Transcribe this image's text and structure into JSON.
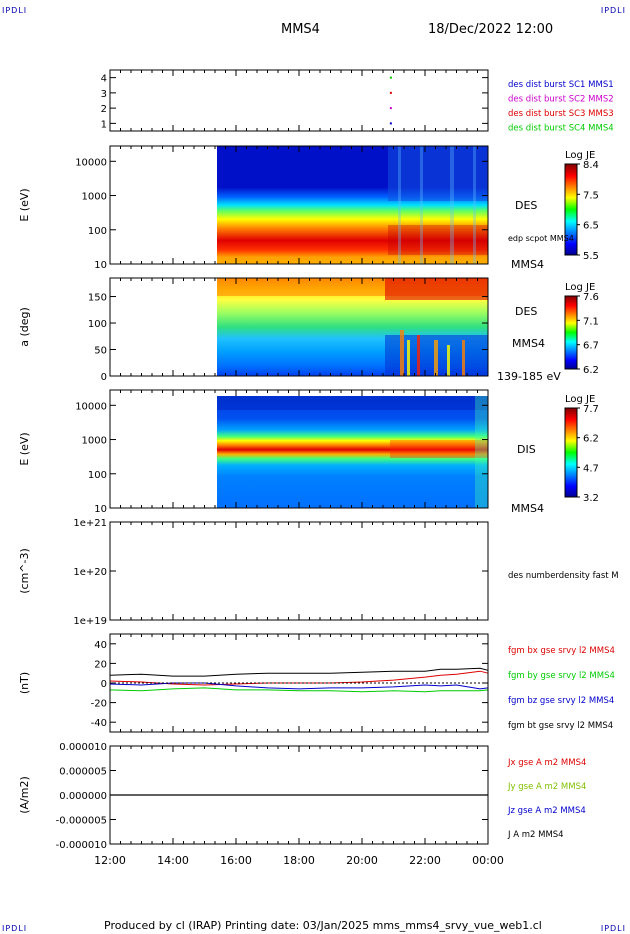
{
  "corners": {
    "tl": "IPDLI",
    "tr": "IPDLI",
    "bl": "IPDLI",
    "br": "IPDLI"
  },
  "header": {
    "spacecraft": "MMS4",
    "datetime": "18/Dec/2022 12:00"
  },
  "footer": {
    "text": "Produced by cl (IRAP)   Printing date: 03/Jan/2025   mms_mms4_srvy_vue_web1.cl"
  },
  "time_axis": {
    "ticks": [
      "12:00",
      "14:00",
      "16:00",
      "18:00",
      "20:00",
      "22:00",
      "00:00"
    ]
  },
  "colors": {
    "des": "#0000cc",
    "mms2": "#cc00cc",
    "mms3": "#dd0000",
    "mms4": "#00cc00",
    "black": "#000000"
  },
  "chart_data": [
    {
      "type": "scatter",
      "title": "",
      "ylabel": "",
      "ylim": [
        0.5,
        4.5
      ],
      "yticks": [
        "4",
        "3",
        "2",
        "1"
      ],
      "legend": [
        "des dist burst SC1 MMS1",
        "des dist burst SC2 MMS2",
        "des dist burst SC3 MMS3",
        "des dist burst SC4 MMS4"
      ],
      "points": [
        {
          "x": "20:55",
          "y": 4,
          "series": "des dist burst SC4 MMS4"
        },
        {
          "x": "20:55",
          "y": 3,
          "series": "des dist burst SC3 MMS3"
        },
        {
          "x": "20:55",
          "y": 2,
          "series": "des dist burst SC2 MMS2"
        },
        {
          "x": "20:55",
          "y": 1,
          "series": "des dist burst SC1 MMS1"
        }
      ]
    },
    {
      "type": "heatmap",
      "ylabel": "E (eV)",
      "yscale": "log",
      "yticks": [
        "10000",
        "1000",
        "100",
        "10"
      ],
      "right_labels": [
        "DES",
        "edp scpot MMS4",
        "MMS4"
      ],
      "colorbar": {
        "title": "Log JE",
        "ticks": [
          "8.4",
          "7.5",
          "6.5",
          "5.5"
        ],
        "range": [
          5.5,
          8.4
        ]
      },
      "data_start": "15:25"
    },
    {
      "type": "heatmap",
      "ylabel": "a (deg)",
      "yticks": [
        "150",
        "100",
        "50",
        "0"
      ],
      "right_labels": [
        "DES",
        "MMS4",
        "139-185 eV"
      ],
      "colorbar": {
        "title": "Log JE",
        "ticks": [
          "7.6",
          "7.1",
          "6.7",
          "6.2"
        ],
        "range": [
          6.2,
          7.6
        ]
      },
      "data_start": "15:25"
    },
    {
      "type": "heatmap",
      "ylabel": "E (eV)",
      "yscale": "log",
      "yticks": [
        "10000",
        "1000",
        "100",
        "10"
      ],
      "right_labels": [
        "DIS",
        "MMS4"
      ],
      "colorbar": {
        "title": "Log JE",
        "ticks": [
          "7.7",
          "6.2",
          "4.7",
          "3.2"
        ],
        "range": [
          3.2,
          7.7
        ]
      },
      "data_start": "15:25"
    },
    {
      "type": "line",
      "ylabel": "(cm^-3)",
      "yscale": "log",
      "yticks": [
        "1e+21",
        "1e+20",
        "1e+19"
      ],
      "legend": [
        "des numberdensity fast M"
      ],
      "series": []
    },
    {
      "type": "line",
      "ylabel": "(nT)",
      "ylim": [
        -50,
        50
      ],
      "yticks": [
        "40",
        "20",
        "0",
        "-20",
        "-40"
      ],
      "legend": [
        "fgm bx gse srvy l2 MMS4",
        "fgm by gse srvy l2 MMS4",
        "fgm bz gse srvy l2 MMS4",
        "fgm bt gse srvy l2 MMS4"
      ],
      "x": [
        "12:00",
        "13:00",
        "14:00",
        "15:00",
        "16:00",
        "17:00",
        "18:00",
        "19:00",
        "20:00",
        "21:00",
        "22:00",
        "22:30",
        "23:00",
        "23:45",
        "00:00"
      ],
      "series": [
        {
          "name": "fgm bx gse srvy l2 MMS4",
          "values": [
            2,
            1,
            -1,
            -2,
            -1,
            0,
            0,
            0,
            1,
            3,
            6,
            8,
            9,
            12,
            10
          ]
        },
        {
          "name": "fgm by gse srvy l2 MMS4",
          "values": [
            -7,
            -8,
            -6,
            -5,
            -7,
            -7,
            -8,
            -8,
            -9,
            -8,
            -9,
            -8,
            -8,
            -8,
            -7
          ]
        },
        {
          "name": "fgm bz gse srvy l2 MMS4",
          "values": [
            -1,
            -2,
            0,
            0,
            -3,
            -5,
            -6,
            -5,
            -5,
            -4,
            -2,
            -3,
            -2,
            -6,
            -5
          ]
        },
        {
          "name": "fgm bt gse srvy l2 MMS4",
          "values": [
            8,
            9,
            7,
            7,
            9,
            10,
            10,
            10,
            11,
            12,
            12,
            14,
            14,
            15,
            13
          ]
        }
      ]
    },
    {
      "type": "line",
      "ylabel": "(A/m2)",
      "ylim": [
        -1e-05,
        1e-05
      ],
      "yticks": [
        "0.000010",
        "0.000005",
        "0.000000",
        "-0.000005",
        "-0.000010"
      ],
      "legend": [
        "Jx gse A m2 MMS4",
        "Jy gse A m2 MMS4",
        "Jz gse A m2 MMS4",
        "J A m2 MMS4"
      ],
      "series": [
        {
          "name": "J A m2 MMS4",
          "values": [
            0,
            0,
            0,
            0,
            0,
            0,
            0,
            0,
            0,
            0,
            0,
            0,
            0,
            0,
            0
          ]
        }
      ]
    }
  ]
}
